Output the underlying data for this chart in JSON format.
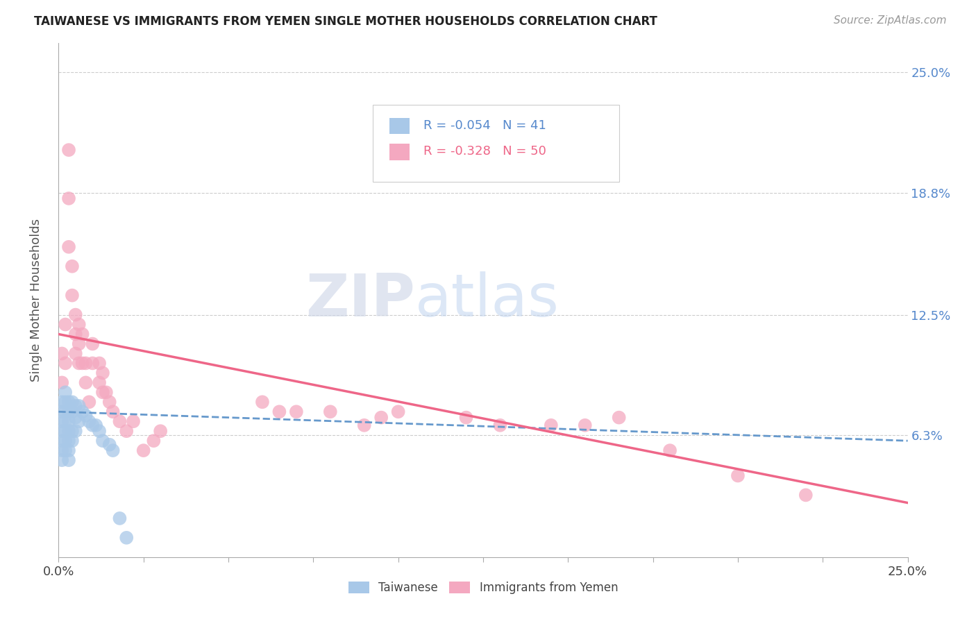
{
  "title": "TAIWANESE VS IMMIGRANTS FROM YEMEN SINGLE MOTHER HOUSEHOLDS CORRELATION CHART",
  "source": "Source: ZipAtlas.com",
  "ylabel": "Single Mother Households",
  "ytick_labels": [
    "25.0%",
    "18.8%",
    "12.5%",
    "6.3%"
  ],
  "ytick_values": [
    0.25,
    0.188,
    0.125,
    0.063
  ],
  "xlim": [
    0.0,
    0.25
  ],
  "ylim": [
    0.0,
    0.265
  ],
  "legend_taiwanese": {
    "R": "-0.054",
    "N": "41"
  },
  "legend_yemen": {
    "R": "-0.328",
    "N": "50"
  },
  "taiwanese_color": "#a8c8e8",
  "yemen_color": "#f4a8c0",
  "trendline_taiwanese_color": "#6699cc",
  "trendline_yemen_color": "#ee6688",
  "watermark_zip": "ZIP",
  "watermark_atlas": "atlas",
  "background_color": "#ffffff",
  "grid_color": "#cccccc",
  "taiwanese_x": [
    0.001,
    0.001,
    0.001,
    0.001,
    0.001,
    0.001,
    0.001,
    0.002,
    0.002,
    0.002,
    0.002,
    0.002,
    0.002,
    0.002,
    0.003,
    0.003,
    0.003,
    0.003,
    0.003,
    0.003,
    0.003,
    0.004,
    0.004,
    0.004,
    0.004,
    0.005,
    0.005,
    0.005,
    0.006,
    0.006,
    0.007,
    0.008,
    0.009,
    0.01,
    0.011,
    0.012,
    0.013,
    0.015,
    0.016,
    0.018,
    0.02
  ],
  "taiwanese_y": [
    0.08,
    0.075,
    0.07,
    0.065,
    0.06,
    0.055,
    0.05,
    0.085,
    0.08,
    0.075,
    0.07,
    0.065,
    0.06,
    0.055,
    0.08,
    0.075,
    0.07,
    0.065,
    0.06,
    0.055,
    0.05,
    0.08,
    0.075,
    0.065,
    0.06,
    0.078,
    0.072,
    0.065,
    0.078,
    0.07,
    0.075,
    0.073,
    0.07,
    0.068,
    0.068,
    0.065,
    0.06,
    0.058,
    0.055,
    0.02,
    0.01
  ],
  "yemen_x": [
    0.001,
    0.001,
    0.002,
    0.002,
    0.003,
    0.003,
    0.003,
    0.004,
    0.004,
    0.005,
    0.005,
    0.005,
    0.006,
    0.006,
    0.006,
    0.007,
    0.007,
    0.008,
    0.008,
    0.009,
    0.01,
    0.01,
    0.012,
    0.012,
    0.013,
    0.013,
    0.014,
    0.015,
    0.016,
    0.018,
    0.02,
    0.022,
    0.025,
    0.028,
    0.03,
    0.06,
    0.065,
    0.07,
    0.08,
    0.09,
    0.095,
    0.1,
    0.12,
    0.13,
    0.145,
    0.155,
    0.165,
    0.18,
    0.2,
    0.22
  ],
  "yemen_y": [
    0.105,
    0.09,
    0.12,
    0.1,
    0.21,
    0.185,
    0.16,
    0.15,
    0.135,
    0.125,
    0.115,
    0.105,
    0.12,
    0.11,
    0.1,
    0.115,
    0.1,
    0.1,
    0.09,
    0.08,
    0.11,
    0.1,
    0.1,
    0.09,
    0.095,
    0.085,
    0.085,
    0.08,
    0.075,
    0.07,
    0.065,
    0.07,
    0.055,
    0.06,
    0.065,
    0.08,
    0.075,
    0.075,
    0.075,
    0.068,
    0.072,
    0.075,
    0.072,
    0.068,
    0.068,
    0.068,
    0.072,
    0.055,
    0.042,
    0.032
  ]
}
